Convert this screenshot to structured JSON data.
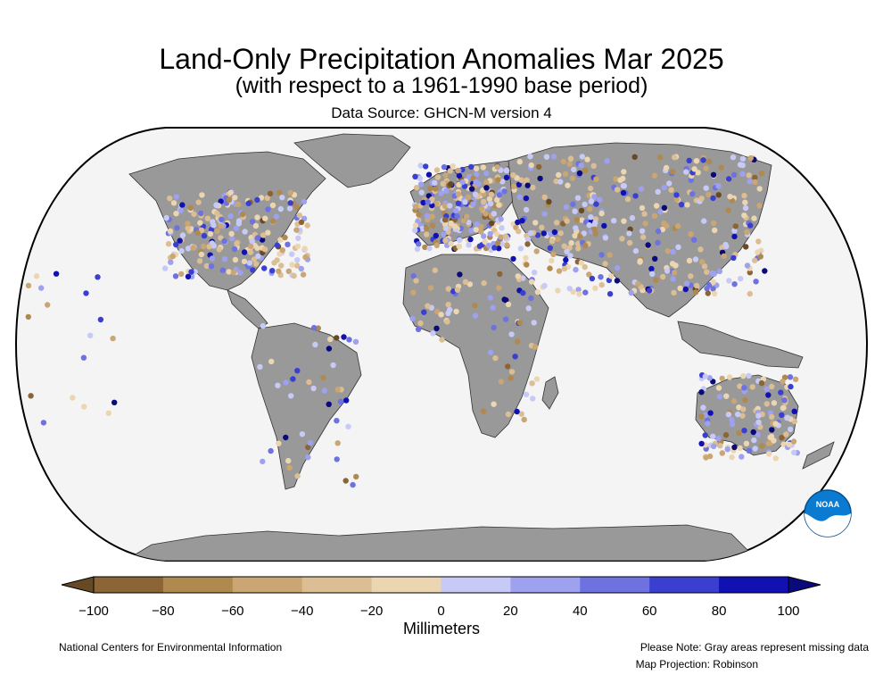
{
  "header": {
    "title": "Land-Only Precipitation Anomalies Mar 2025",
    "subtitle": "(with respect to a 1961-1990 base period)",
    "source": "Data Source: GHCN-M version 4"
  },
  "colorbar": {
    "unit_label": "Millimeters",
    "ticks": [
      "−100",
      "−80",
      "−60",
      "−40",
      "−20",
      "0",
      "20",
      "40",
      "60",
      "80",
      "100"
    ],
    "colors": [
      "#8c6536",
      "#b0894f",
      "#c9a673",
      "#dbbe93",
      "#ecd6b2",
      "#c7caf7",
      "#9da1ee",
      "#6d72e0",
      "#3b3fcf",
      "#1010b3"
    ],
    "under_color": "#684925",
    "over_color": "#0a0a7a"
  },
  "colors": {
    "ocean": "#f4f4f4",
    "land_missing": "#999999",
    "noaa_blue": "#0a7bd0"
  },
  "logo": {
    "text": "NOAA"
  },
  "footer": {
    "credit": "National Centers for Environmental Information",
    "note": "Please Note: Gray areas represent missing data",
    "projection": "Map Projection: Robinson"
  }
}
